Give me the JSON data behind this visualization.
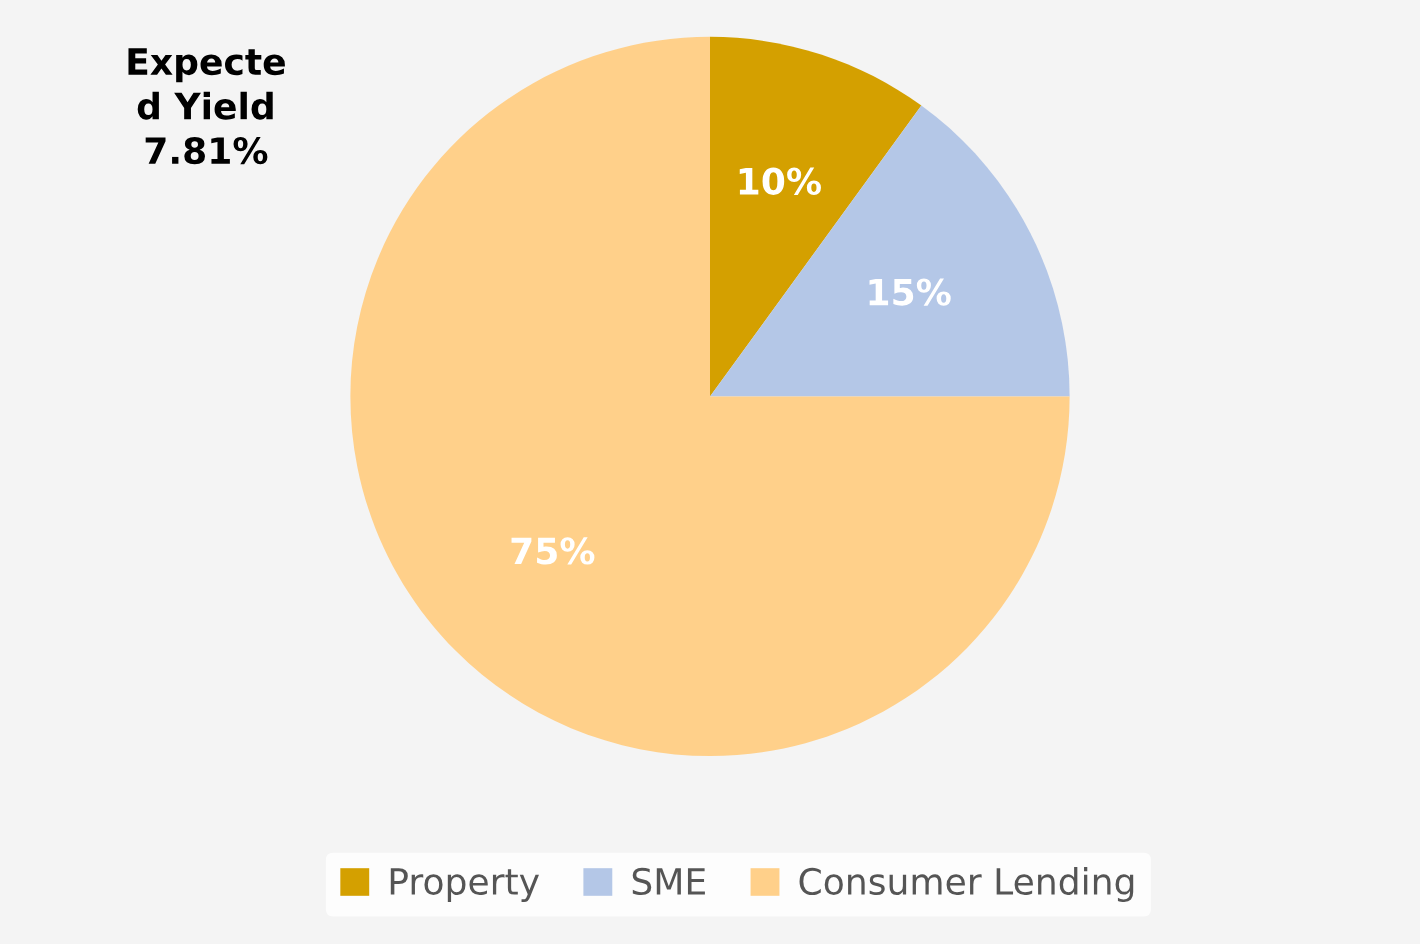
{
  "chart_data": {
    "type": "pie",
    "title": "Expecte\nd Yield\n7.81%",
    "categories": [
      "Property",
      "SME",
      "Consumer Lending"
    ],
    "values": [
      10,
      15,
      75
    ],
    "colors": [
      "#d4a000",
      "#b4c7e7",
      "#ffd08a"
    ],
    "value_labels": [
      "10%",
      "15%",
      "75%"
    ],
    "legend": "bottom"
  }
}
